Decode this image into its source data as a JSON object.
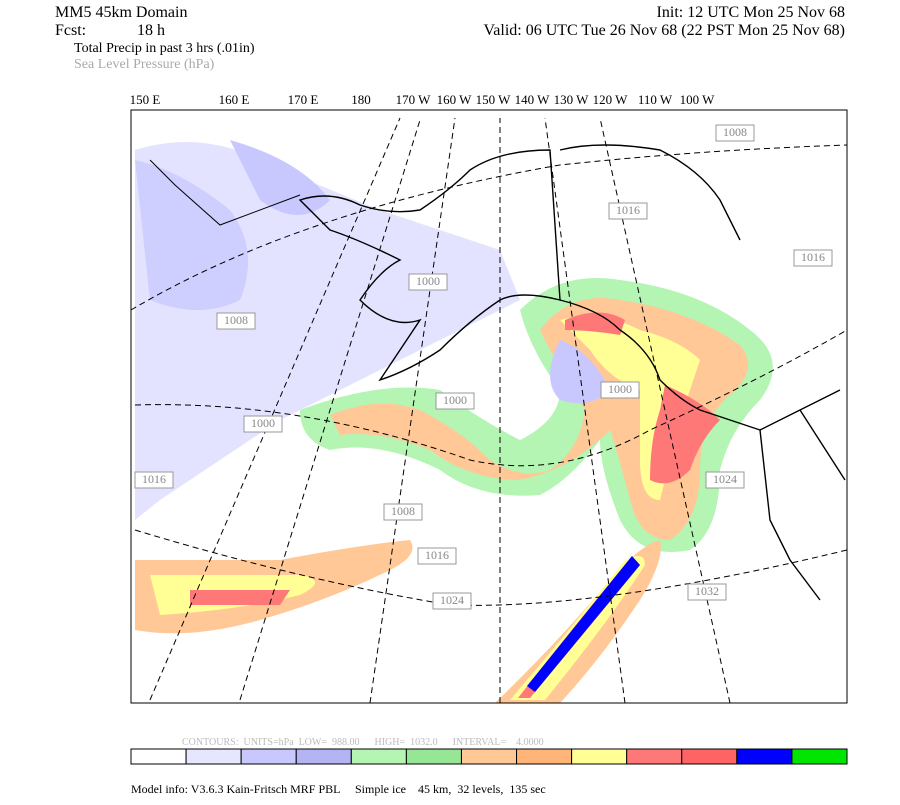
{
  "header": {
    "domain": "MM5 45km Domain",
    "fcst_label": "Fcst:",
    "fcst_value": "18 h",
    "init": "Init: 12 UTC Mon 25 Nov 68",
    "valid": "Valid: 06 UTC Tue 26 Nov 68 (22 PST Mon 25 Nov 68)",
    "field1": "Total Precip in past 3 hrs (.01in)",
    "field2": "Sea Level Pressure (hPa)"
  },
  "longitude_labels": [
    "150 E",
    "160 E",
    "170 E",
    "180",
    "170 W",
    "160 W",
    "150 W",
    "140 W",
    "130 W",
    "120 W",
    "110 W",
    "100 W"
  ],
  "isobar_labels": [
    "1008",
    "1016",
    "1016",
    "1008",
    "1000",
    "1000",
    "1000",
    "1000",
    "1016",
    "1008",
    "1016",
    "1024",
    "1024",
    "1032"
  ],
  "contour_info": "CONTOURS:  UNITS=hPa  LOW=  988.00      HIGH=  1032.0      INTERVAL=    4.0000",
  "colorbar": [
    "#ffffff",
    "#e6e6ff",
    "#c8c8ff",
    "#b4b4f5",
    "#b4f5b4",
    "#96e696",
    "#ffc896",
    "#ffb478",
    "#ffff96",
    "#ff7878",
    "#ff6464",
    "#0000ff",
    "#00e600"
  ],
  "footer": "Model info: V3.6.3 Kain-Fritsch MRF PBL     Simple ice    45 km,  32 levels,  135 sec"
}
